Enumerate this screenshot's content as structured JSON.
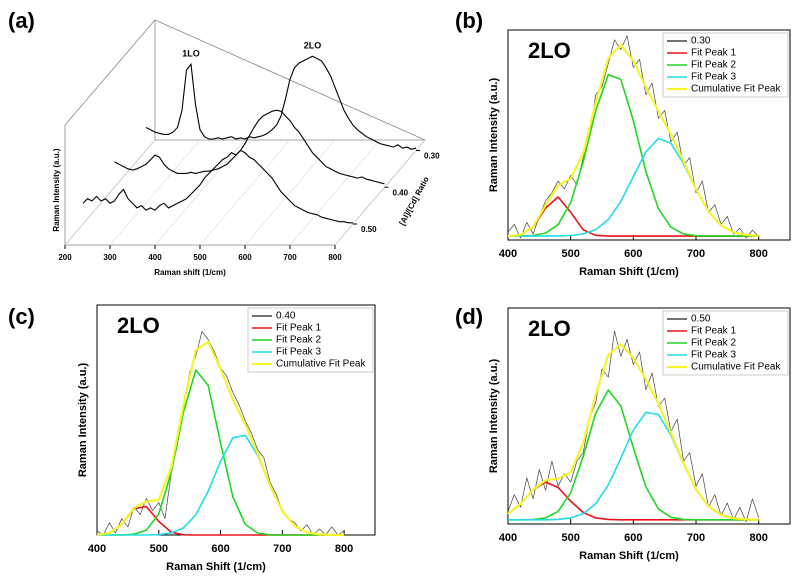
{
  "chart_data": [
    {
      "type": "waterfall3d",
      "panel_label": "(a)",
      "x_label": "Raman shift (1/cm)",
      "y_label": "Raman Intensity (a.u.)",
      "z_label": "[Al]/[Cd] Ratio",
      "x": [
        200,
        210,
        220,
        230,
        240,
        250,
        260,
        270,
        280,
        290,
        300,
        310,
        320,
        330,
        340,
        350,
        360,
        370,
        380,
        390,
        400,
        410,
        420,
        430,
        440,
        450,
        460,
        470,
        480,
        490,
        500,
        510,
        520,
        530,
        540,
        550,
        560,
        570,
        580,
        590,
        600,
        610,
        620,
        630,
        640,
        650,
        660,
        670,
        680,
        690,
        700,
        710,
        720,
        730,
        740,
        750,
        760,
        770,
        780,
        790,
        800
      ],
      "xlim": [
        200,
        800
      ],
      "xticks": [
        200,
        300,
        400,
        500,
        600,
        700,
        800
      ],
      "ylim": [
        0,
        100
      ],
      "series": [
        {
          "name": "0.30",
          "color": "#000000",
          "values": [
            20,
            18,
            16,
            15,
            14,
            14,
            16,
            20,
            35,
            70,
            75,
            40,
            18,
            12,
            10,
            10,
            11,
            10,
            11,
            12,
            10,
            11,
            10,
            12,
            11,
            12,
            13,
            15,
            18,
            22,
            30,
            45,
            62,
            72,
            76,
            78,
            80,
            82,
            80,
            78,
            72,
            65,
            55,
            45,
            35,
            28,
            22,
            18,
            15,
            12,
            10,
            8,
            6,
            5,
            4,
            3,
            5,
            2,
            3,
            1,
            2
          ]
        },
        {
          "name": "0.40",
          "color": "#000000",
          "values": [
            22,
            20,
            18,
            16,
            15,
            16,
            18,
            20,
            24,
            28,
            26,
            20,
            16,
            14,
            12,
            12,
            12,
            13,
            12,
            13,
            14,
            14,
            15,
            16,
            18,
            20,
            24,
            28,
            32,
            38,
            45,
            52,
            58,
            62,
            64,
            66,
            67,
            66,
            62,
            58,
            52,
            48,
            42,
            36,
            30,
            26,
            22,
            18,
            16,
            14,
            12,
            11,
            10,
            9,
            8,
            9,
            7,
            6,
            5,
            4,
            3
          ]
        },
        {
          "name": "0.50",
          "color": "#000000",
          "values": [
            18,
            22,
            20,
            24,
            20,
            22,
            18,
            20,
            26,
            30,
            22,
            18,
            14,
            16,
            12,
            14,
            12,
            16,
            18,
            14,
            16,
            18,
            20,
            22,
            26,
            30,
            34,
            40,
            44,
            48,
            52,
            56,
            58,
            62,
            60,
            64,
            62,
            58,
            56,
            52,
            48,
            44,
            40,
            34,
            28,
            24,
            20,
            16,
            14,
            12,
            10,
            9,
            8,
            6,
            5,
            4,
            3,
            2,
            2,
            1,
            1
          ]
        }
      ],
      "annotations": [
        {
          "text": "1LO",
          "x": 300
        },
        {
          "text": "2LO",
          "x": 570
        }
      ]
    },
    {
      "type": "line",
      "panel_label": "(b)",
      "title": "2LO",
      "x_label": "Raman Shift (1/cm)",
      "y_label": "Raman Intensity (a.u.)",
      "x": [
        400,
        420,
        440,
        460,
        480,
        500,
        520,
        540,
        560,
        580,
        600,
        620,
        640,
        660,
        680,
        700,
        720,
        740,
        760,
        780,
        800
      ],
      "xlim": [
        400,
        850
      ],
      "xticks": [
        400,
        500,
        600,
        700,
        800
      ],
      "ylim": [
        0,
        107
      ],
      "legend": "upper right",
      "series": [
        {
          "name": "0.30",
          "color": "#444444",
          "x": [
            400,
            410,
            420,
            430,
            440,
            450,
            460,
            470,
            480,
            490,
            500,
            510,
            520,
            530,
            540,
            550,
            560,
            570,
            580,
            590,
            600,
            610,
            620,
            630,
            640,
            650,
            660,
            670,
            680,
            690,
            700,
            710,
            720,
            730,
            740,
            750,
            760,
            770,
            780,
            790,
            800
          ],
          "values": [
            4,
            8,
            1,
            9,
            3,
            12,
            20,
            24,
            30,
            26,
            33,
            28,
            42,
            52,
            74,
            78,
            90,
            102,
            97,
            104,
            88,
            92,
            74,
            80,
            62,
            66,
            50,
            55,
            38,
            42,
            24,
            30,
            14,
            18,
            8,
            12,
            3,
            6,
            1,
            5,
            2
          ]
        },
        {
          "name": "Fit Peak 1",
          "color": "#e8141c",
          "values": [
            2,
            2.6,
            6.5,
            16.3,
            21.9,
            14.1,
            5.2,
            2.4,
            2,
            2,
            2,
            2,
            2,
            2,
            2,
            2,
            2,
            2,
            2,
            2,
            2
          ]
        },
        {
          "name": "Fit Peak 2",
          "color": "#22d622",
          "values": [
            2,
            2,
            2.3,
            3.5,
            7.8,
            19,
            39.8,
            66,
            84.2,
            81.9,
            60.9,
            34.9,
            15.9,
            6.5,
            3.1,
            2.2,
            2,
            2,
            2,
            2,
            2
          ]
        },
        {
          "name": "Fit Peak 3",
          "color": "#22dde8",
          "values": [
            2,
            2,
            2,
            2,
            2.1,
            2.3,
            3.1,
            5.3,
            10.4,
            19.6,
            32.3,
            44.9,
            51.7,
            49.3,
            39,
            25.7,
            14.5,
            7.4,
            3.9,
            2.6,
            2.1
          ]
        },
        {
          "name": "Cumulative Fit Peak",
          "color": "#f5f52a",
          "values": [
            2,
            2.6,
            6.8,
            17.8,
            27.8,
            31.4,
            44.1,
            69.7,
            92.6,
            99.5,
            91.2,
            77.8,
            65.6,
            53.8,
            40.1,
            25.9,
            14.5,
            7.4,
            3.9,
            2.6,
            2.1
          ]
        }
      ]
    },
    {
      "type": "line",
      "panel_label": "(c)",
      "title": "2LO",
      "x_label": "Raman Shift (1/cm)",
      "y_label": "Raman Intensity (a.u.)",
      "x": [
        400,
        420,
        440,
        460,
        480,
        500,
        520,
        540,
        560,
        580,
        600,
        620,
        640,
        660,
        680,
        700,
        720,
        740,
        760,
        780,
        800
      ],
      "xlim": [
        400,
        850
      ],
      "xticks": [
        400,
        500,
        600,
        700,
        800
      ],
      "ylim": [
        0,
        113
      ],
      "legend": "upper right",
      "series": [
        {
          "name": "0.40",
          "color": "#444444",
          "x": [
            400,
            410,
            420,
            430,
            440,
            450,
            460,
            470,
            480,
            490,
            500,
            510,
            520,
            530,
            540,
            550,
            560,
            570,
            580,
            590,
            600,
            610,
            620,
            630,
            640,
            650,
            660,
            670,
            680,
            690,
            700,
            710,
            720,
            730,
            740,
            750,
            760,
            770,
            780,
            790,
            800
          ],
          "values": [
            2,
            0,
            6,
            1,
            8,
            4,
            14,
            10,
            18,
            12,
            16,
            8,
            30,
            44,
            62,
            80,
            88,
            100,
            96,
            90,
            82,
            78,
            70,
            64,
            56,
            50,
            42,
            38,
            26,
            20,
            12,
            8,
            6,
            2,
            5,
            0,
            3,
            0,
            4,
            0,
            2
          ]
        },
        {
          "name": "Fit Peak 1",
          "color": "#e8141c",
          "values": [
            0.1,
            0.9,
            5.2,
            12.9,
            14,
            6.7,
            1.4,
            0.1,
            0,
            0,
            0,
            0,
            0,
            0,
            0,
            0,
            0,
            0,
            0,
            0,
            0
          ]
        },
        {
          "name": "Fit Peak 2",
          "color": "#22d622",
          "values": [
            0,
            0,
            0,
            0.4,
            2.4,
            10.4,
            30.5,
            60.4,
            81,
            73.5,
            45.1,
            18.7,
            5.2,
            1,
            0.1,
            0,
            0,
            0,
            0,
            0,
            0
          ]
        },
        {
          "name": "Fit Peak 3",
          "color": "#22dde8",
          "values": [
            0,
            0,
            0,
            0,
            0,
            0.2,
            1,
            3.5,
            9.9,
            21.5,
            36.3,
            47.8,
            49,
            39.1,
            24.3,
            11.8,
            4.4,
            1.3,
            0.3,
            0,
            0
          ]
        },
        {
          "name": "Cumulative Fit Peak",
          "color": "#f5f52a",
          "values": [
            0.1,
            0.9,
            5.2,
            13.3,
            16.4,
            17.3,
            32.9,
            64,
            90.9,
            95,
            81.4,
            66.5,
            54.2,
            40.1,
            24.4,
            11.8,
            4.4,
            1.3,
            0.3,
            0,
            0
          ]
        }
      ]
    },
    {
      "type": "line",
      "panel_label": "(d)",
      "title": "2LO",
      "x_label": "Raman Shift (1/cm)",
      "y_label": "Raman Intensity (a.u.)",
      "x": [
        400,
        420,
        440,
        460,
        480,
        500,
        520,
        540,
        560,
        580,
        600,
        620,
        640,
        660,
        680,
        700,
        720,
        740,
        760,
        780,
        800
      ],
      "xlim": [
        400,
        850
      ],
      "xticks": [
        400,
        500,
        600,
        700,
        800
      ],
      "ylim": [
        0,
        103
      ],
      "legend": "upper right",
      "series": [
        {
          "name": "0.50",
          "color": "#444444",
          "x": [
            400,
            410,
            420,
            430,
            440,
            450,
            460,
            470,
            480,
            490,
            500,
            510,
            520,
            530,
            540,
            550,
            560,
            570,
            580,
            590,
            600,
            610,
            620,
            630,
            640,
            650,
            660,
            670,
            680,
            690,
            700,
            710,
            720,
            730,
            740,
            750,
            760,
            770,
            780,
            790,
            800
          ],
          "values": [
            6,
            14,
            8,
            22,
            12,
            26,
            16,
            30,
            18,
            24,
            20,
            30,
            34,
            50,
            58,
            74,
            70,
            92,
            80,
            88,
            76,
            82,
            64,
            72,
            56,
            60,
            44,
            50,
            30,
            34,
            18,
            24,
            8,
            14,
            4,
            10,
            2,
            8,
            1,
            12,
            3
          ]
        },
        {
          "name": "Fit Peak 1",
          "color": "#e8141c",
          "values": [
            4.8,
            9.6,
            16.2,
            20,
            17.4,
            10.9,
            5.5,
            2.9,
            2.2,
            2,
            2,
            2,
            2,
            2,
            2,
            2,
            2,
            2,
            2,
            2,
            2
          ]
        },
        {
          "name": "Fit Peak 2",
          "color": "#22d622",
          "values": [
            2,
            2,
            2.1,
            2.9,
            6,
            14.9,
            32.2,
            52.9,
            63.9,
            56.3,
            36.4,
            17.7,
            7.2,
            3.2,
            2.2,
            2,
            2,
            2,
            2,
            2,
            2
          ]
        },
        {
          "name": "Fit Peak 3",
          "color": "#22dde8",
          "values": [
            2,
            2,
            2,
            2,
            2.2,
            2.9,
            4.9,
            9.7,
            18.6,
            31.4,
            44.8,
            53.2,
            52.2,
            42.4,
            28.7,
            16.5,
            8.4,
            4.3,
            2.7,
            2.2,
            2
          ]
        },
        {
          "name": "Cumulative Fit Peak",
          "color": "#f5f52a",
          "values": [
            4.8,
            9.6,
            16.3,
            20.9,
            21.6,
            24.7,
            38.6,
            61.5,
            80.7,
            85.7,
            79.2,
            68.9,
            57.4,
            43.6,
            28.9,
            16.5,
            8.4,
            4.3,
            2.7,
            2.2,
            2
          ]
        }
      ]
    }
  ]
}
